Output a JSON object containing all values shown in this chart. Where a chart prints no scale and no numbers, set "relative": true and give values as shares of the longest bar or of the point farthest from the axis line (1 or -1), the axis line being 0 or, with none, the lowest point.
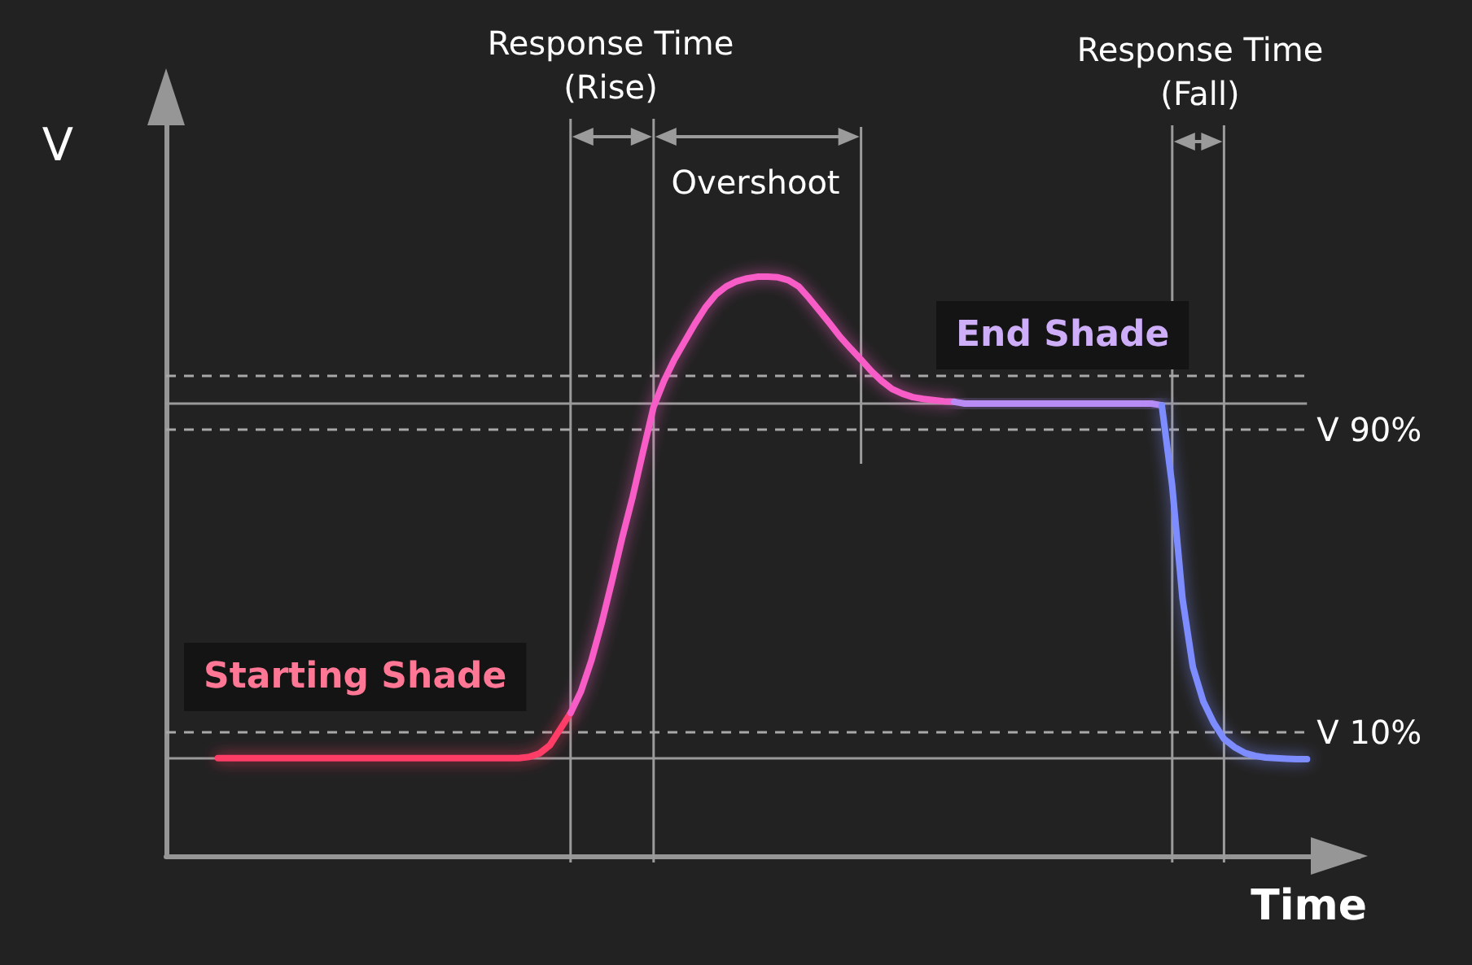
{
  "chart_data": {
    "type": "line",
    "relative": true,
    "xlabel": "Time",
    "ylabel": "V",
    "tick_labels": false,
    "grid": "x",
    "categories": [
      null,
      null,
      null,
      null,
      null,
      null,
      null,
      null,
      null,
      null,
      null,
      null,
      null,
      null,
      null,
      null,
      null,
      null,
      null,
      null,
      null,
      null,
      null,
      null,
      null,
      null,
      null,
      null,
      null,
      null,
      null,
      null,
      null,
      null,
      null,
      null,
      null,
      null,
      null,
      null,
      null,
      null,
      null,
      null,
      null,
      null,
      null,
      null,
      null,
      null,
      null,
      null,
      null,
      null,
      null,
      null,
      null,
      null,
      null,
      null,
      null,
      null,
      null,
      null,
      null,
      null,
      null,
      null,
      null,
      null,
      null,
      null,
      null,
      null,
      null,
      null,
      null,
      null,
      null,
      null,
      null,
      null,
      null,
      null,
      null,
      null,
      null,
      null,
      null,
      null,
      null,
      null,
      null,
      null,
      null,
      null,
      null,
      null,
      null,
      null,
      null,
      null,
      null,
      null,
      null,
      null
    ],
    "series": [
      {
        "color": "#ff3d66",
        "values": [
          0.169,
          0.169,
          0.169,
          0.169,
          0.169,
          0.169,
          0.169,
          0.169,
          0.169,
          0.169,
          0.169,
          0.169,
          0.169,
          0.169,
          0.169,
          0.169,
          0.169,
          0.169,
          0.169,
          0.169,
          0.169,
          0.169,
          0.169,
          0.169,
          0.169,
          0.169,
          0.169,
          0.169,
          0.169,
          0.169,
          0.171,
          0.177,
          0.191,
          0.219,
          0.247,
          null,
          null,
          null,
          null,
          null,
          null,
          null,
          null,
          null,
          null,
          null,
          null,
          null,
          null,
          null,
          null,
          null,
          null,
          null,
          null,
          null,
          null,
          null,
          null,
          null,
          null,
          null,
          null,
          null,
          null,
          null,
          null,
          null,
          null,
          null,
          null,
          null,
          null,
          null,
          null,
          null,
          null,
          null,
          null,
          null,
          null,
          null,
          null,
          null,
          null,
          null,
          null,
          null,
          null,
          null,
          null,
          null,
          null,
          null,
          null,
          null,
          null,
          null,
          null,
          null,
          null,
          null,
          null,
          null,
          null,
          null
        ]
      },
      {
        "color": "#f85cc6",
        "values": [
          null,
          null,
          null,
          null,
          null,
          null,
          null,
          null,
          null,
          null,
          null,
          null,
          null,
          null,
          null,
          null,
          null,
          null,
          null,
          null,
          null,
          null,
          null,
          null,
          null,
          null,
          null,
          null,
          null,
          null,
          null,
          null,
          null,
          null,
          0.247,
          0.284,
          0.337,
          0.402,
          0.475,
          0.551,
          0.621,
          0.699,
          0.775,
          0.82,
          0.857,
          0.888,
          0.919,
          0.947,
          0.969,
          0.983,
          0.992,
          0.997,
          1,
          1,
          0.999,
          0.994,
          0.983,
          0.963,
          0.941,
          0.919,
          0.896,
          0.876,
          0.857,
          0.837,
          0.82,
          0.806,
          0.798,
          0.792,
          0.789,
          0.787,
          0.785,
          0.784,
          null,
          null,
          null,
          null,
          null,
          null,
          null,
          null,
          null,
          null,
          null,
          null,
          null,
          null,
          null,
          null,
          null,
          null,
          null,
          null,
          null,
          null,
          null,
          null,
          null,
          null,
          null,
          null,
          null,
          null,
          null,
          null,
          null,
          null
        ]
      },
      {
        "color": "#b98bf5",
        "values": [
          null,
          null,
          null,
          null,
          null,
          null,
          null,
          null,
          null,
          null,
          null,
          null,
          null,
          null,
          null,
          null,
          null,
          null,
          null,
          null,
          null,
          null,
          null,
          null,
          null,
          null,
          null,
          null,
          null,
          null,
          null,
          null,
          null,
          null,
          null,
          null,
          null,
          null,
          null,
          null,
          null,
          null,
          null,
          null,
          null,
          null,
          null,
          null,
          null,
          null,
          null,
          null,
          null,
          null,
          null,
          null,
          null,
          null,
          null,
          null,
          null,
          null,
          null,
          null,
          null,
          null,
          null,
          null,
          null,
          null,
          null,
          0.784,
          0.781,
          0.781,
          0.781,
          0.781,
          0.781,
          0.781,
          0.781,
          0.781,
          0.781,
          0.781,
          0.781,
          0.781,
          0.781,
          0.781,
          0.781,
          0.781,
          0.781,
          0.781,
          0.781,
          0.778,
          null,
          null,
          null,
          null,
          null,
          null,
          null,
          null,
          null,
          null,
          null,
          null,
          null,
          null
        ]
      },
      {
        "color": "#7d8dff",
        "values": [
          null,
          null,
          null,
          null,
          null,
          null,
          null,
          null,
          null,
          null,
          null,
          null,
          null,
          null,
          null,
          null,
          null,
          null,
          null,
          null,
          null,
          null,
          null,
          null,
          null,
          null,
          null,
          null,
          null,
          null,
          null,
          null,
          null,
          null,
          null,
          null,
          null,
          null,
          null,
          null,
          null,
          null,
          null,
          null,
          null,
          null,
          null,
          null,
          null,
          null,
          null,
          null,
          null,
          null,
          null,
          null,
          null,
          null,
          null,
          null,
          null,
          null,
          null,
          null,
          null,
          null,
          null,
          null,
          null,
          null,
          null,
          null,
          null,
          null,
          null,
          null,
          null,
          null,
          null,
          null,
          null,
          null,
          null,
          null,
          null,
          null,
          null,
          null,
          null,
          null,
          null,
          0.778,
          0.64,
          0.444,
          0.326,
          0.267,
          0.23,
          0.202,
          0.188,
          0.178,
          0.173,
          0.17,
          0.169,
          0.168,
          0.167,
          0.167
        ]
      }
    ],
    "ref_lines": [
      {
        "axis": "y",
        "value": 0.829,
        "line_style": "dashed",
        "color": "#a8a8a8"
      },
      {
        "axis": "y",
        "value": 0.782,
        "line_style": "solid",
        "color": "#9a9a9a"
      },
      {
        "axis": "y",
        "value": 0.736,
        "line_style": "dashed",
        "color": "#a8a8a8",
        "label": "V 90%"
      },
      {
        "axis": "y",
        "value": 0.213,
        "line_style": "dashed",
        "color": "#a8a8a8",
        "label": "V 10%"
      },
      {
        "axis": "y",
        "value": 0.169,
        "line_style": "solid",
        "color": "#9a9a9a"
      }
    ],
    "annotations": [
      "Response Time\n(Rise)",
      "Overshoot",
      "Response Time\n(Fall)",
      "Starting Shade",
      "End Shade"
    ]
  }
}
